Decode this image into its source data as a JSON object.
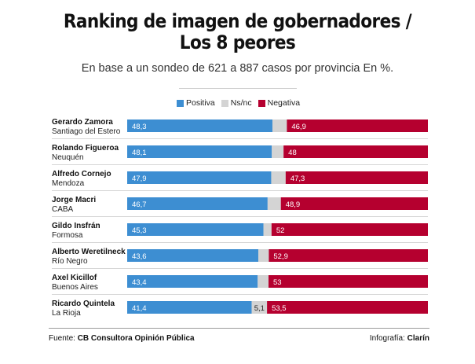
{
  "title_line1": "Ranking de imagen de gobernadores /",
  "title_line2": "Los 8 peores",
  "subtitle": "En base a un sondeo de 621 a 887 casos por provincia En %.",
  "legend": [
    {
      "label": "Positiva",
      "color": "#3d8ed2"
    },
    {
      "label": "Ns/nc",
      "color": "#d4d4d4"
    },
    {
      "label": "Negativa",
      "color": "#b5002f"
    }
  ],
  "source_prefix": "Fuente: ",
  "source_name": "CB Consultora Opinión Pública",
  "credit_prefix": "Infografía: ",
  "credit_name": "Clarín",
  "chart_data": {
    "type": "bar",
    "orientation": "horizontal",
    "stacked": true,
    "xlim": [
      0,
      100
    ],
    "categories": [
      {
        "name": "Gerardo Zamora",
        "province": "Santiago del Estero"
      },
      {
        "name": "Rolando Figueroa",
        "province": "Neuquén"
      },
      {
        "name": "Alfredo Cornejo",
        "province": "Mendoza"
      },
      {
        "name": "Jorge Macri",
        "province": "CABA"
      },
      {
        "name": "Gildo Insfrán",
        "province": "Formosa"
      },
      {
        "name": "Alberto Weretilneck",
        "province": "Río Negro"
      },
      {
        "name": "Axel Kicillof",
        "province": "Buenos Aires"
      },
      {
        "name": "Ricardo Quintela",
        "province": "La Rioja"
      }
    ],
    "series": [
      {
        "name": "Positiva",
        "color": "#3d8ed2",
        "values": [
          48.3,
          48.1,
          47.9,
          46.7,
          45.3,
          43.6,
          43.4,
          41.4
        ],
        "labels": [
          "48,3",
          "48,1",
          "47,9",
          "46,7",
          "45,3",
          "43,6",
          "43,4",
          "41,4"
        ]
      },
      {
        "name": "Ns/nc",
        "color": "#d4d4d4",
        "values": [
          4.8,
          3.9,
          4.8,
          4.4,
          2.7,
          3.5,
          3.6,
          5.1
        ],
        "labels": [
          "",
          "",
          "",
          "",
          "",
          "",
          "",
          "5,1"
        ]
      },
      {
        "name": "Negativa",
        "color": "#b5002f",
        "values": [
          46.9,
          48,
          47.3,
          48.9,
          52,
          52.9,
          53,
          53.5
        ],
        "labels": [
          "46,9",
          "48",
          "47,3",
          "48,9",
          "52",
          "52,9",
          "53",
          "53,5"
        ]
      }
    ]
  }
}
